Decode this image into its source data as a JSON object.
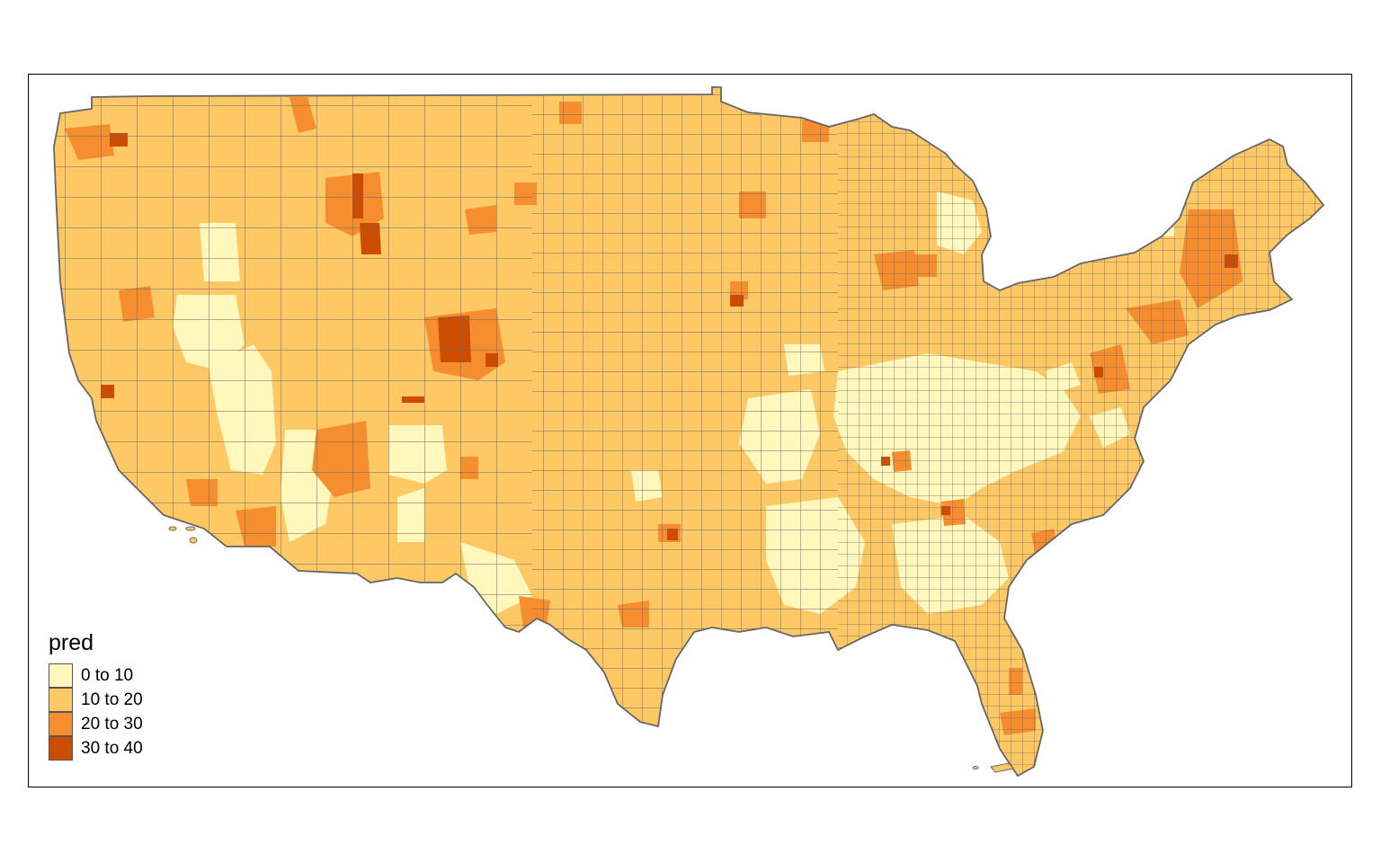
{
  "legend": {
    "title": "pred",
    "classes": [
      {
        "label": "0 to 10",
        "color": "#FFF7BC"
      },
      {
        "label": "10 to 20",
        "color": "#FEC965"
      },
      {
        "label": "20 to 30",
        "color": "#F68D2E"
      },
      {
        "label": "30 to 40",
        "color": "#CC4C02"
      }
    ]
  },
  "map": {
    "border_color": "#666666",
    "frame_color": "#000000"
  }
}
